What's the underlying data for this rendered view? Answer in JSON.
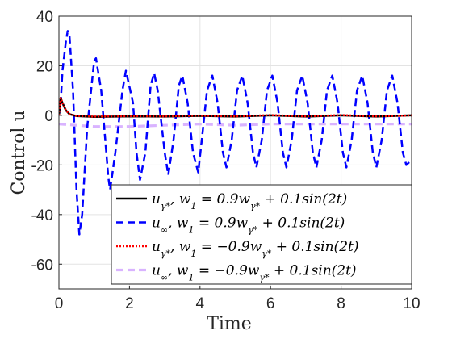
{
  "chart_data": {
    "type": "line",
    "xlabel": "Time",
    "ylabel": "Control u",
    "xlim": [
      0,
      10
    ],
    "ylim": [
      -70,
      40
    ],
    "xticks": [
      "0",
      "2",
      "4",
      "6",
      "8",
      "10"
    ],
    "yticks": [
      "40",
      "20",
      "0",
      "-20",
      "-40",
      "-60"
    ],
    "grid": true,
    "legend_position": "bottom-right",
    "series": [
      {
        "name": "u_{γ*}, w_1 = 0.9w_{γ*} + 0.1sin(2t)",
        "label": {
          "v": "u",
          "vsub": "γ*",
          "rest": ", w",
          "rsub": "1",
          "eq": " = 0.9w",
          "esub": "γ*",
          "tail": " + 0.1sin(2t)"
        },
        "color": "#000000",
        "style": "solid",
        "points": [
          [
            0,
            0
          ],
          [
            0.05,
            7
          ],
          [
            0.1,
            5
          ],
          [
            0.2,
            2
          ],
          [
            0.3,
            0.5
          ],
          [
            0.5,
            -0.3
          ],
          [
            1,
            -0.6
          ],
          [
            2,
            -0.4
          ],
          [
            3,
            -0.5
          ],
          [
            4,
            -0.2
          ],
          [
            5,
            -0.5
          ],
          [
            6,
            0
          ],
          [
            7,
            -0.5
          ],
          [
            8,
            0
          ],
          [
            9,
            -0.5
          ],
          [
            10,
            0
          ]
        ]
      },
      {
        "name": "u_∞, w_1 = 0.9w_{γ*} + 0.1sin(2t)",
        "label": {
          "v": "u",
          "vsub": "∞",
          "rest": ", w",
          "rsub": "1",
          "eq": " = 0.9w",
          "esub": "γ*",
          "tail": " + 0.1sin(2t)"
        },
        "color": "#0000ff",
        "style": "dashed",
        "points": [
          [
            0,
            0
          ],
          [
            0.05,
            5
          ],
          [
            0.1,
            18
          ],
          [
            0.2,
            30
          ],
          [
            0.25,
            34
          ],
          [
            0.3,
            32
          ],
          [
            0.4,
            10
          ],
          [
            0.5,
            -30
          ],
          [
            0.58,
            -48
          ],
          [
            0.66,
            -40
          ],
          [
            0.8,
            -5
          ],
          [
            1,
            22
          ],
          [
            1.05,
            23
          ],
          [
            1.2,
            10
          ],
          [
            1.4,
            -25
          ],
          [
            1.45,
            -30
          ],
          [
            1.6,
            -15
          ],
          [
            1.8,
            10
          ],
          [
            1.9,
            18
          ],
          [
            2.1,
            5
          ],
          [
            2.2,
            -15
          ],
          [
            2.3,
            -26
          ],
          [
            2.45,
            -15
          ],
          [
            2.6,
            12
          ],
          [
            2.7,
            17
          ],
          [
            2.8,
            10
          ],
          [
            3,
            -15
          ],
          [
            3.1,
            -24
          ],
          [
            3.25,
            -10
          ],
          [
            3.4,
            12
          ],
          [
            3.5,
            16
          ],
          [
            3.65,
            5
          ],
          [
            3.8,
            -15
          ],
          [
            3.95,
            -23
          ],
          [
            4.05,
            -10
          ],
          [
            4.2,
            10
          ],
          [
            4.35,
            16
          ],
          [
            4.5,
            5
          ],
          [
            4.65,
            -15
          ],
          [
            4.75,
            -21
          ],
          [
            4.9,
            -10
          ],
          [
            5.05,
            10
          ],
          [
            5.2,
            16
          ],
          [
            5.35,
            5
          ],
          [
            5.5,
            -15
          ],
          [
            5.6,
            -21
          ],
          [
            5.75,
            -10
          ],
          [
            5.9,
            10
          ],
          [
            6.05,
            16
          ],
          [
            6.2,
            5
          ],
          [
            6.35,
            -15
          ],
          [
            6.45,
            -21
          ],
          [
            6.6,
            -10
          ],
          [
            6.75,
            10
          ],
          [
            6.9,
            16
          ],
          [
            7.05,
            5
          ],
          [
            7.2,
            -15
          ],
          [
            7.3,
            -21
          ],
          [
            7.45,
            -10
          ],
          [
            7.6,
            10
          ],
          [
            7.75,
            16
          ],
          [
            7.9,
            5
          ],
          [
            8.05,
            -15
          ],
          [
            8.15,
            -21
          ],
          [
            8.3,
            -10
          ],
          [
            8.45,
            10
          ],
          [
            8.6,
            16
          ],
          [
            8.75,
            5
          ],
          [
            8.9,
            -15
          ],
          [
            9.0,
            -21
          ],
          [
            9.15,
            -10
          ],
          [
            9.3,
            10
          ],
          [
            9.45,
            16
          ],
          [
            9.6,
            5
          ],
          [
            9.75,
            -15
          ],
          [
            9.85,
            -20
          ],
          [
            10,
            -18
          ]
        ]
      },
      {
        "name": "u_{γ*}, w_1 = -0.9w_{γ*} + 0.1sin(2t)",
        "label": {
          "v": "u",
          "vsub": "γ*",
          "rest": ", w",
          "rsub": "1",
          "eq": " = −0.9w",
          "esub": "γ*",
          "tail": " + 0.1sin(2t)"
        },
        "color": "#ff0000",
        "style": "dotted",
        "points": [
          [
            0,
            0
          ],
          [
            0.05,
            7
          ],
          [
            0.1,
            5
          ],
          [
            0.2,
            2
          ],
          [
            0.3,
            0.5
          ],
          [
            0.5,
            -0.2
          ],
          [
            1,
            -0.5
          ],
          [
            2,
            -0.3
          ],
          [
            3,
            -0.4
          ],
          [
            4,
            -0.1
          ],
          [
            5,
            -0.4
          ],
          [
            6,
            0.1
          ],
          [
            7,
            -0.4
          ],
          [
            8,
            0.1
          ],
          [
            9,
            -0.4
          ],
          [
            10,
            0
          ]
        ]
      },
      {
        "name": "u_∞, w_1 = -0.9w_{γ*} + 0.1sin(2t)",
        "label": {
          "v": "u",
          "vsub": "∞",
          "rest": ", w",
          "rsub": "1",
          "eq": " = −0.9w",
          "esub": "γ*",
          "tail": " + 0.1sin(2t)"
        },
        "color": "#d9b3ff",
        "style": "dashed",
        "points": [
          [
            0,
            -3.5
          ],
          [
            0.5,
            -4
          ],
          [
            1,
            -4.5
          ],
          [
            2,
            -4.5
          ],
          [
            3,
            -4
          ],
          [
            4,
            -3.5
          ],
          [
            5,
            -4
          ],
          [
            6,
            -3.5
          ],
          [
            7,
            -3.5
          ],
          [
            8,
            -3.5
          ],
          [
            9,
            -3.5
          ],
          [
            10,
            -3.5
          ]
        ]
      }
    ]
  }
}
